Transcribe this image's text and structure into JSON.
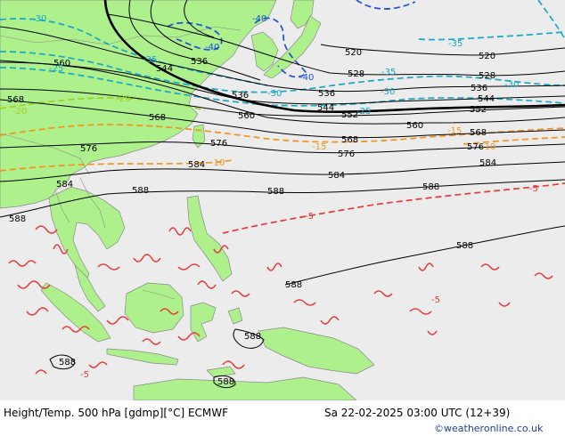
{
  "footer": {
    "left": "Height/Temp. 500 hPa [gdmp][°C] ECMWF",
    "right": "Sa 22-02-2025 03:00 UTC (12+39)",
    "credit": "©weatheronline.co.uk"
  },
  "height_labels": [
    "520",
    "520",
    "528",
    "528",
    "536",
    "536",
    "536",
    "536",
    "544",
    "544",
    "544",
    "552",
    "552",
    "560",
    "560",
    "560",
    "568",
    "568",
    "568",
    "568",
    "568",
    "576",
    "576",
    "576",
    "576",
    "584",
    "584",
    "584",
    "584",
    "588",
    "588",
    "588",
    "588",
    "588",
    "588",
    "588",
    "588"
  ],
  "temp_labels": [
    "-40",
    "-40",
    "-40",
    "-35",
    "-35",
    "-35",
    "-30",
    "-30",
    "-30",
    "-30",
    "-25",
    "-25",
    "-20",
    "-20",
    "-15",
    "-15",
    "-10",
    "-10",
    "-5",
    "-5",
    "-5",
    "-5"
  ],
  "colors": {
    "land": "#aef08c",
    "sea": "#ececec",
    "height_contour": "#000000",
    "temp_cold": "#1e50d8",
    "temp_cyan": "#18a8c8",
    "temp_green": "#9ed21e",
    "temp_orange": "#f0961e",
    "temp_red": "#e83a3a"
  }
}
